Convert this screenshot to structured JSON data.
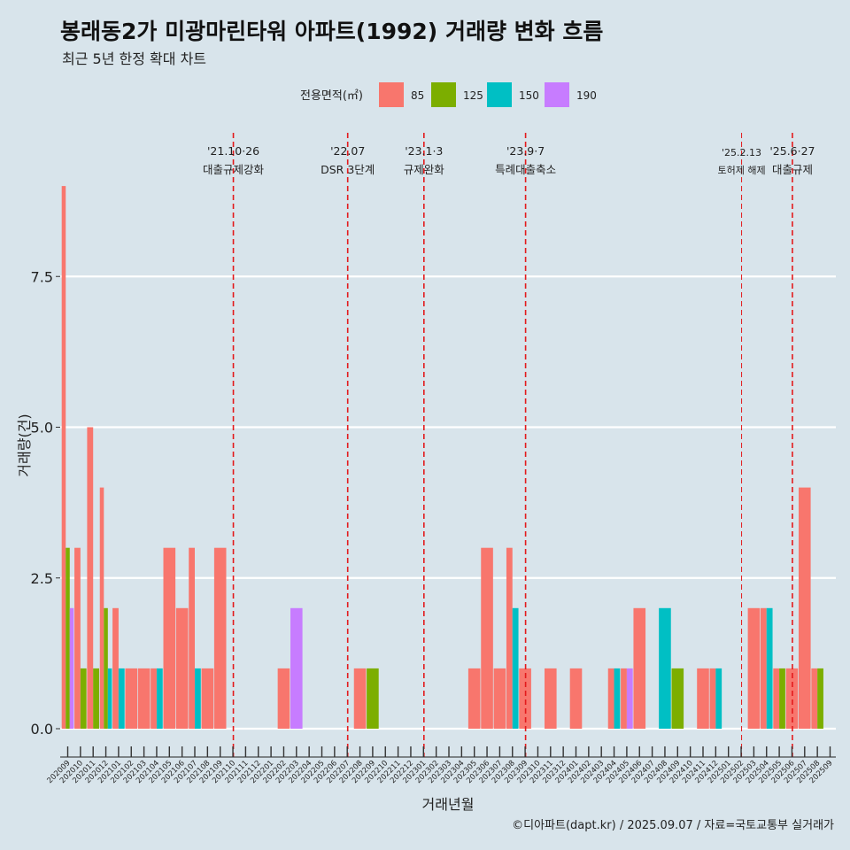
{
  "title": "봉래동2가 미광마린타워 아파트(1992) 거래량 변화 흐름",
  "subtitle": "최근 5년 한정 확대 차트",
  "caption": "©디아파트(dapt.kr) / 2025.09.07 / 자료=국토교통부 실거래가",
  "colors": {
    "background": "#d8e4eb",
    "85": "#f8766d",
    "125": "#7cae00",
    "150": "#00bfc4",
    "190": "#c77cff",
    "event_line": "#e31a1c"
  },
  "chart_data": {
    "type": "bar",
    "xlabel": "거래년월",
    "ylabel": "거래량(건)",
    "ylim": [
      -0.4,
      9.2
    ],
    "yticks": [
      0.0,
      2.5,
      5.0,
      7.5
    ],
    "ytick_labels": [
      "0.0",
      "2.5",
      "5.0",
      "7.5"
    ],
    "grid": true,
    "legend": {
      "title": "전용면적(㎡)",
      "position": "top",
      "entries": [
        "85",
        "125",
        "150",
        "190"
      ]
    },
    "categories": [
      "202009",
      "202010",
      "202011",
      "202012",
      "202101",
      "202102",
      "202103",
      "202104",
      "202105",
      "202106",
      "202107",
      "202108",
      "202109",
      "202110",
      "202111",
      "202112",
      "202201",
      "202202",
      "202203",
      "202204",
      "202205",
      "202206",
      "202207",
      "202208",
      "202209",
      "202210",
      "202211",
      "202212",
      "202301",
      "202302",
      "202303",
      "202304",
      "202305",
      "202306",
      "202307",
      "202308",
      "202309",
      "202310",
      "202311",
      "202312",
      "202401",
      "202402",
      "202403",
      "202404",
      "202405",
      "202406",
      "202407",
      "202408",
      "202409",
      "202410",
      "202411",
      "202412",
      "202501",
      "202502",
      "202503",
      "202504",
      "202505",
      "202506",
      "202507",
      "202508",
      "202509"
    ],
    "series": [
      {
        "name": "85",
        "values": [
          9,
          3,
          5,
          4,
          2,
          1,
          1,
          1,
          3,
          2,
          3,
          1,
          3,
          0,
          0,
          0,
          0,
          1,
          0,
          0,
          0,
          0,
          0,
          1,
          0,
          0,
          0,
          0,
          0,
          0,
          0,
          0,
          1,
          3,
          1,
          3,
          1,
          0,
          1,
          0,
          1,
          0,
          0,
          1,
          1,
          2,
          0,
          0,
          0,
          0,
          1,
          1,
          0,
          0,
          2,
          2,
          1,
          1,
          4,
          1,
          0
        ]
      },
      {
        "name": "125",
        "values": [
          3,
          1,
          1,
          2,
          0,
          0,
          0,
          0,
          0,
          0,
          0,
          0,
          0,
          0,
          0,
          0,
          0,
          0,
          0,
          0,
          0,
          0,
          0,
          0,
          1,
          0,
          0,
          0,
          0,
          0,
          0,
          0,
          0,
          0,
          0,
          0,
          0,
          0,
          0,
          0,
          0,
          0,
          0,
          0,
          0,
          0,
          0,
          0,
          1,
          0,
          0,
          0,
          0,
          0,
          0,
          0,
          1,
          0,
          0,
          1,
          0
        ]
      },
      {
        "name": "150",
        "values": [
          0,
          0,
          0,
          1,
          1,
          0,
          0,
          1,
          0,
          0,
          1,
          0,
          0,
          0,
          0,
          0,
          0,
          0,
          0,
          0,
          0,
          0,
          0,
          0,
          0,
          0,
          0,
          0,
          0,
          0,
          0,
          0,
          0,
          0,
          0,
          2,
          0,
          0,
          0,
          0,
          0,
          0,
          0,
          1,
          0,
          0,
          0,
          2,
          0,
          0,
          0,
          1,
          0,
          0,
          0,
          2,
          0,
          0,
          0,
          0,
          0
        ]
      },
      {
        "name": "190",
        "values": [
          2,
          0,
          0,
          0,
          0,
          0,
          0,
          0,
          0,
          0,
          0,
          0,
          0,
          0,
          0,
          0,
          0,
          0,
          2,
          0,
          0,
          0,
          0,
          0,
          0,
          0,
          0,
          0,
          0,
          0,
          0,
          0,
          0,
          0,
          0,
          0,
          0,
          0,
          0,
          0,
          0,
          0,
          0,
          0,
          1,
          0,
          0,
          0,
          0,
          0,
          0,
          0,
          0,
          0,
          0,
          0,
          0,
          0,
          0,
          0,
          0
        ]
      }
    ],
    "annotations": [
      {
        "month": "202110",
        "date": "'21.10·26",
        "label": "대출규제강화"
      },
      {
        "month": "202207",
        "date": "'22.07",
        "label": "DSR 3단계"
      },
      {
        "month": "202301",
        "date": "'23.1·3",
        "label": "규제완화"
      },
      {
        "month": "202309",
        "date": "'23.9·7",
        "label": "특례대출축소"
      },
      {
        "month": "202502",
        "date": "'25.2.13",
        "label": "토허제 해제",
        "small": true
      },
      {
        "month": "202506",
        "date": "'25.6·27",
        "label": "대출규제"
      }
    ]
  }
}
